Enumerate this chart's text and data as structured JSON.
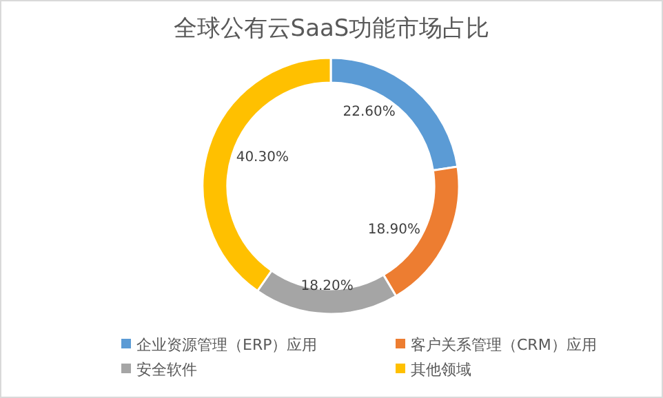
{
  "chart_data": {
    "type": "donut",
    "title": "全球公有云SaaS功能市场占比",
    "categories": [
      "企业资源管理（ERP）应用",
      "客户关系管理（CRM）应用",
      "安全软件",
      "其他领域"
    ],
    "values": [
      22.6,
      18.9,
      18.2,
      40.3
    ],
    "colors": [
      "#5b9bd5",
      "#ed7d31",
      "#a5a5a5",
      "#ffc000"
    ],
    "value_labels": [
      "22.60%",
      "18.90%",
      "18.20%",
      "40.30%"
    ],
    "legend": "bottom"
  }
}
